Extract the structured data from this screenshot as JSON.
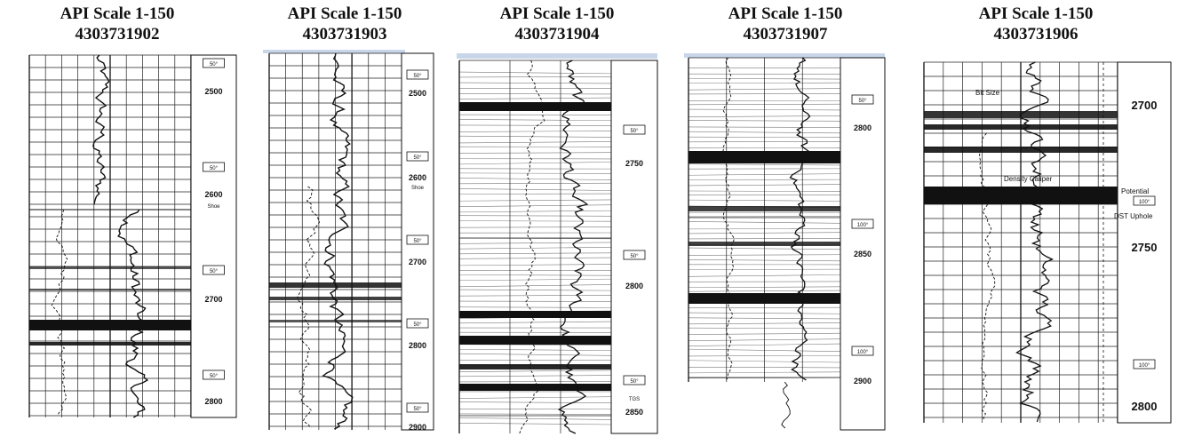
{
  "panels": [
    {
      "title": "API Scale 1-150",
      "well": "4303731902",
      "depths": [
        "2500",
        "2600",
        "2700",
        "2800"
      ],
      "markers": [
        "Shoe"
      ],
      "scale_labels": [
        "50°",
        "50°",
        "50°",
        "50°"
      ]
    },
    {
      "title": "API Scale 1-150",
      "well": "4303731903",
      "depths": [
        "2500",
        "2600",
        "2700",
        "2800",
        "2900"
      ],
      "markers": [
        "Shoe"
      ],
      "scale_labels": [
        "50°",
        "50°",
        "50°",
        "50°",
        "50°"
      ]
    },
    {
      "title": "API Scale 1-150",
      "well": "4303731904",
      "depths": [
        "2750",
        "2800",
        "2850"
      ],
      "markers": [
        "TGS"
      ],
      "scale_labels": [
        "50°",
        "50°",
        "50°"
      ]
    },
    {
      "title": "API Scale 1-150",
      "well": "4303731907",
      "depths": [
        "2800",
        "2850",
        "2900"
      ],
      "markers": [],
      "scale_labels": [
        "50°",
        "100°",
        "100°"
      ]
    },
    {
      "title": "API Scale 1-150",
      "well": "4303731906",
      "depths": [
        "2700",
        "2750",
        "2800"
      ],
      "markers": [],
      "scale_labels": [
        "100°",
        "100°"
      ],
      "annotations": [
        "Bit Size",
        "Density Caliper",
        "Potential",
        "DST Uphole"
      ]
    }
  ],
  "colors": {
    "ink": "#111111",
    "grid": "#222222",
    "frame_tint": "#c9d6ea"
  }
}
